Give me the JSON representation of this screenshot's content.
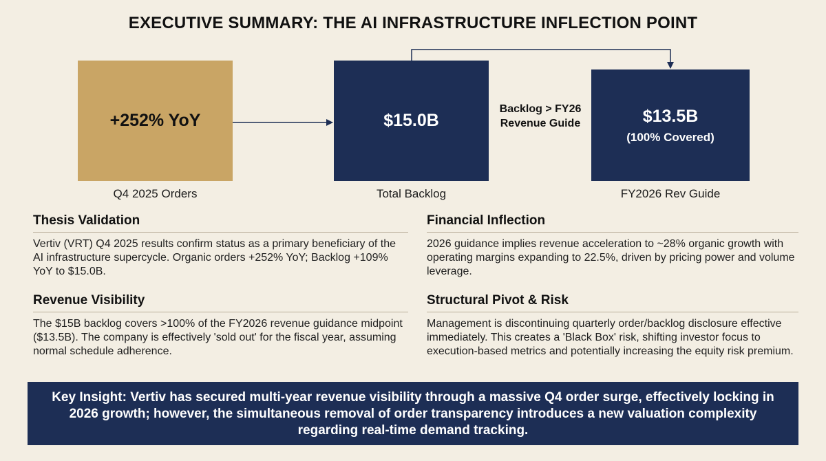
{
  "title": "EXECUTIVE SUMMARY: THE AI INFRASTRUCTURE INFLECTION POINT",
  "flow": {
    "orders": {
      "value": "+252% YoY",
      "label": "Q4 2025 Orders"
    },
    "backlog": {
      "value": "$15.0B",
      "label": "Total Backlog"
    },
    "guide": {
      "value": "$13.5B",
      "sub": "(100% Covered)",
      "label": "FY2026 Rev Guide"
    },
    "connector_text_line1": "Backlog > FY26",
    "connector_text_line2": "Revenue Guide"
  },
  "sections": {
    "thesis": {
      "heading": "Thesis Validation",
      "body": "Vertiv (VRT) Q4 2025 results confirm status as a primary beneficiary of the AI infrastructure supercycle. Organic orders +252% YoY; Backlog +109% YoY to $15.0B."
    },
    "financial": {
      "heading": "Financial Inflection",
      "body": "2026 guidance implies revenue acceleration to ~28% organic growth with operating margins expanding to 22.5%, driven by pricing power and volume leverage."
    },
    "visibility": {
      "heading": "Revenue Visibility",
      "body": "The $15B backlog covers >100% of the FY2026 revenue guidance midpoint ($13.5B). The company is effectively 'sold out' for the fiscal year, assuming normal schedule adherence."
    },
    "pivot": {
      "heading": "Structural Pivot & Risk",
      "body": "Management is discontinuing quarterly order/backlog disclosure effective immediately. This creates a 'Black Box' risk, shifting investor focus to execution-based metrics and potentially increasing the equity risk premium."
    }
  },
  "insight": "Key Insight: Vertiv has secured multi-year revenue visibility through a massive Q4 order surge, effectively locking in 2026 growth; however, the simultaneous removal of order transparency introduces a new valuation complexity regarding real-time demand tracking.",
  "colors": {
    "background": "#f3eee3",
    "gold": "#c9a565",
    "navy": "#1d2e55"
  }
}
